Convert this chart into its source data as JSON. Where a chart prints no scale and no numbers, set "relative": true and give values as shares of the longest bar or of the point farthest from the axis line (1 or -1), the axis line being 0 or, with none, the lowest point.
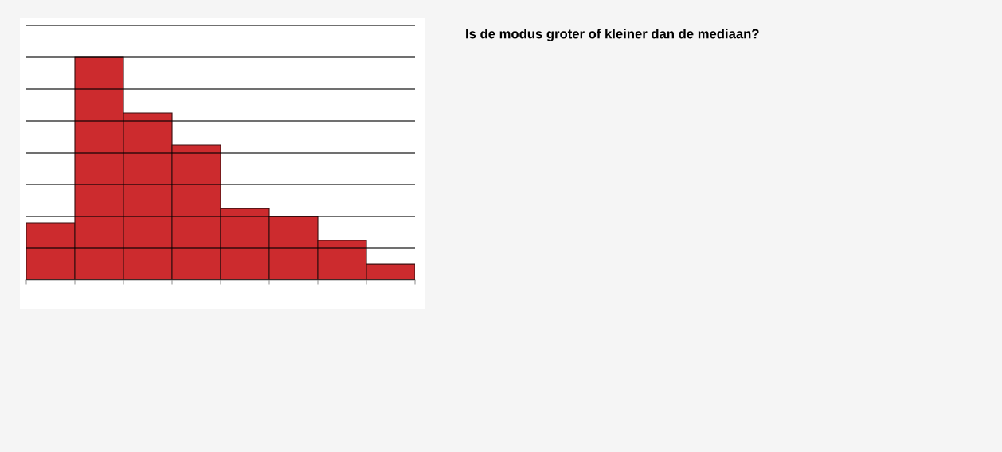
{
  "chart_data": {
    "type": "bar",
    "title": "Is de modus groter of kleiner dan de mediaan?",
    "categories": [
      null,
      null,
      null,
      null,
      null,
      null,
      null,
      null
    ],
    "values": [
      0.257,
      1,
      0.75,
      0.607,
      0.321,
      0.286,
      0.179,
      0.071
    ],
    "color": "#cc2b2e",
    "relative": true,
    "grid": "y"
  }
}
